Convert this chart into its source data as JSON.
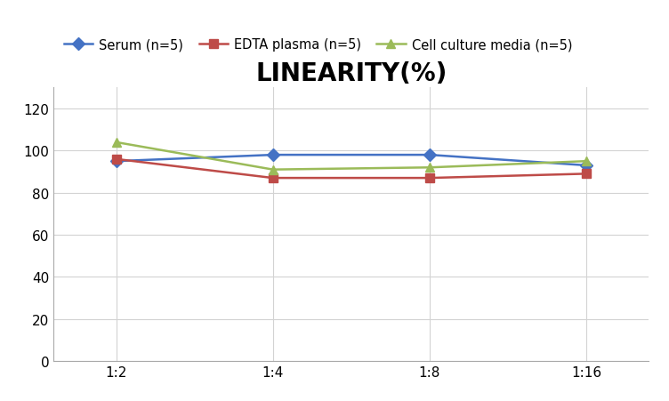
{
  "title": "LINEARITY(%)",
  "x_labels": [
    "1:2",
    "1:4",
    "1:8",
    "1:16"
  ],
  "x_positions": [
    0,
    1,
    2,
    3
  ],
  "series": [
    {
      "label": "Serum (n=5)",
      "values": [
        95,
        98,
        98,
        93
      ],
      "color": "#4472C4",
      "marker": "D",
      "marker_color": "#4472C4"
    },
    {
      "label": "EDTA plasma (n=5)",
      "values": [
        96,
        87,
        87,
        89
      ],
      "color": "#BE4B48",
      "marker": "s",
      "marker_color": "#BE4B48"
    },
    {
      "label": "Cell culture media (n=5)",
      "values": [
        104,
        91,
        92,
        95
      ],
      "color": "#9BBB59",
      "marker": "^",
      "marker_color": "#9BBB59"
    }
  ],
  "ylim": [
    0,
    130
  ],
  "yticks": [
    0,
    20,
    40,
    60,
    80,
    100,
    120
  ],
  "background_color": "#ffffff",
  "title_fontsize": 20,
  "title_fontweight": "bold",
  "legend_fontsize": 10.5,
  "tick_fontsize": 11,
  "grid_color": "#d3d3d3"
}
